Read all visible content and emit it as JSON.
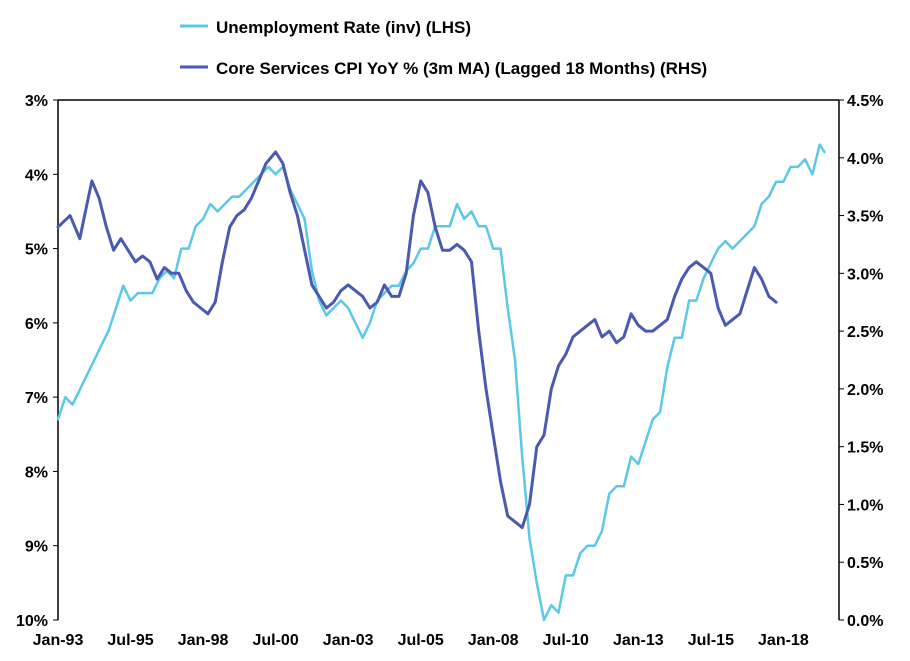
{
  "chart_data": {
    "type": "line",
    "title": "",
    "x_ticks": [
      "Jan-93",
      "Jul-95",
      "Jan-98",
      "Jul-00",
      "Jan-03",
      "Jul-05",
      "Jan-08",
      "Jul-10",
      "Jan-13",
      "Jul-15",
      "Jan-18"
    ],
    "y_left": {
      "inverted": true,
      "ylim": [
        3,
        10
      ],
      "ticks": [
        3,
        4,
        5,
        6,
        7,
        8,
        9,
        10
      ],
      "tick_labels": [
        "3%",
        "4%",
        "5%",
        "6%",
        "7%",
        "8%",
        "9%",
        "10%"
      ]
    },
    "y_right": {
      "ylim": [
        0,
        4.5
      ],
      "ticks": [
        0,
        0.5,
        1,
        1.5,
        2,
        2.5,
        3,
        3.5,
        4,
        4.5
      ],
      "tick_labels": [
        "0.0%",
        "0.5%",
        "1.0%",
        "1.5%",
        "2.0%",
        "2.5%",
        "3.0%",
        "3.5%",
        "4.0%",
        "4.5%"
      ]
    },
    "legend_position": "top-center",
    "series": [
      {
        "name": "Unemployment Rate  (inv) (LHS)",
        "axis": "left",
        "color": "#5BC8E8",
        "points": [
          [
            "1993-01",
            7.3
          ],
          [
            "1993-04",
            7.0
          ],
          [
            "1993-07",
            7.1
          ],
          [
            "1993-10",
            6.9
          ],
          [
            "1994-01",
            6.7
          ],
          [
            "1994-04",
            6.5
          ],
          [
            "1994-07",
            6.3
          ],
          [
            "1994-10",
            6.1
          ],
          [
            "1995-01",
            5.8
          ],
          [
            "1995-04",
            5.5
          ],
          [
            "1995-07",
            5.7
          ],
          [
            "1995-10",
            5.6
          ],
          [
            "1996-01",
            5.6
          ],
          [
            "1996-04",
            5.6
          ],
          [
            "1996-07",
            5.4
          ],
          [
            "1996-10",
            5.3
          ],
          [
            "1997-01",
            5.4
          ],
          [
            "1997-04",
            5.0
          ],
          [
            "1997-07",
            5.0
          ],
          [
            "1997-10",
            4.7
          ],
          [
            "1998-01",
            4.6
          ],
          [
            "1998-04",
            4.4
          ],
          [
            "1998-07",
            4.5
          ],
          [
            "1998-10",
            4.4
          ],
          [
            "1999-01",
            4.3
          ],
          [
            "1999-04",
            4.3
          ],
          [
            "1999-07",
            4.2
          ],
          [
            "1999-10",
            4.1
          ],
          [
            "2000-01",
            4.0
          ],
          [
            "2000-04",
            3.9
          ],
          [
            "2000-07",
            4.0
          ],
          [
            "2000-10",
            3.9
          ],
          [
            "2001-01",
            4.2
          ],
          [
            "2001-04",
            4.4
          ],
          [
            "2001-07",
            4.6
          ],
          [
            "2001-10",
            5.3
          ],
          [
            "2002-01",
            5.7
          ],
          [
            "2002-04",
            5.9
          ],
          [
            "2002-07",
            5.8
          ],
          [
            "2002-10",
            5.7
          ],
          [
            "2003-01",
            5.8
          ],
          [
            "2003-04",
            6.0
          ],
          [
            "2003-07",
            6.2
          ],
          [
            "2003-10",
            6.0
          ],
          [
            "2004-01",
            5.7
          ],
          [
            "2004-04",
            5.6
          ],
          [
            "2004-07",
            5.5
          ],
          [
            "2004-10",
            5.5
          ],
          [
            "2005-01",
            5.3
          ],
          [
            "2005-04",
            5.2
          ],
          [
            "2005-07",
            5.0
          ],
          [
            "2005-10",
            5.0
          ],
          [
            "2006-01",
            4.7
          ],
          [
            "2006-04",
            4.7
          ],
          [
            "2006-07",
            4.7
          ],
          [
            "2006-10",
            4.4
          ],
          [
            "2007-01",
            4.6
          ],
          [
            "2007-04",
            4.5
          ],
          [
            "2007-07",
            4.7
          ],
          [
            "2007-10",
            4.7
          ],
          [
            "2008-01",
            5.0
          ],
          [
            "2008-04",
            5.0
          ],
          [
            "2008-07",
            5.8
          ],
          [
            "2008-10",
            6.5
          ],
          [
            "2009-01",
            7.8
          ],
          [
            "2009-04",
            8.9
          ],
          [
            "2009-07",
            9.5
          ],
          [
            "2009-10",
            10.0
          ],
          [
            "2010-01",
            9.8
          ],
          [
            "2010-04",
            9.9
          ],
          [
            "2010-07",
            9.4
          ],
          [
            "2010-10",
            9.4
          ],
          [
            "2011-01",
            9.1
          ],
          [
            "2011-04",
            9.0
          ],
          [
            "2011-07",
            9.0
          ],
          [
            "2011-10",
            8.8
          ],
          [
            "2012-01",
            8.3
          ],
          [
            "2012-04",
            8.2
          ],
          [
            "2012-07",
            8.2
          ],
          [
            "2012-10",
            7.8
          ],
          [
            "2013-01",
            7.9
          ],
          [
            "2013-04",
            7.6
          ],
          [
            "2013-07",
            7.3
          ],
          [
            "2013-10",
            7.2
          ],
          [
            "2014-01",
            6.6
          ],
          [
            "2014-04",
            6.2
          ],
          [
            "2014-07",
            6.2
          ],
          [
            "2014-10",
            5.7
          ],
          [
            "2015-01",
            5.7
          ],
          [
            "2015-04",
            5.4
          ],
          [
            "2015-07",
            5.2
          ],
          [
            "2015-10",
            5.0
          ],
          [
            "2016-01",
            4.9
          ],
          [
            "2016-04",
            5.0
          ],
          [
            "2016-07",
            4.9
          ],
          [
            "2016-10",
            4.8
          ],
          [
            "2017-01",
            4.7
          ],
          [
            "2017-04",
            4.4
          ],
          [
            "2017-07",
            4.3
          ],
          [
            "2017-10",
            4.1
          ],
          [
            "2018-01",
            4.1
          ],
          [
            "2018-04",
            3.9
          ],
          [
            "2018-07",
            3.9
          ],
          [
            "2018-10",
            3.8
          ],
          [
            "2019-01",
            4.0
          ],
          [
            "2019-04",
            3.6
          ],
          [
            "2019-06",
            3.7
          ]
        ]
      },
      {
        "name": "Core Services CPI YoY % (3m MA) (Lagged 18 Months) (RHS)",
        "axis": "right",
        "color": "#4A5AB0",
        "points": [
          [
            "1993-01",
            3.4
          ],
          [
            "1993-06",
            3.5
          ],
          [
            "1993-10",
            3.3
          ],
          [
            "1994-01",
            3.6
          ],
          [
            "1994-03",
            3.8
          ],
          [
            "1994-06",
            3.65
          ],
          [
            "1994-09",
            3.4
          ],
          [
            "1994-12",
            3.2
          ],
          [
            "1995-03",
            3.3
          ],
          [
            "1995-06",
            3.2
          ],
          [
            "1995-09",
            3.1
          ],
          [
            "1995-12",
            3.15
          ],
          [
            "1996-03",
            3.1
          ],
          [
            "1996-06",
            2.95
          ],
          [
            "1996-09",
            3.05
          ],
          [
            "1996-12",
            3.0
          ],
          [
            "1997-03",
            3.0
          ],
          [
            "1997-06",
            2.85
          ],
          [
            "1997-09",
            2.75
          ],
          [
            "1997-12",
            2.7
          ],
          [
            "1998-03",
            2.65
          ],
          [
            "1998-06",
            2.75
          ],
          [
            "1998-09",
            3.1
          ],
          [
            "1998-12",
            3.4
          ],
          [
            "1999-03",
            3.5
          ],
          [
            "1999-06",
            3.55
          ],
          [
            "1999-09",
            3.65
          ],
          [
            "1999-12",
            3.8
          ],
          [
            "2000-03",
            3.95
          ],
          [
            "2000-07",
            4.05
          ],
          [
            "2000-10",
            3.95
          ],
          [
            "2001-01",
            3.7
          ],
          [
            "2001-04",
            3.5
          ],
          [
            "2001-07",
            3.2
          ],
          [
            "2001-10",
            2.9
          ],
          [
            "2002-01",
            2.8
          ],
          [
            "2002-04",
            2.7
          ],
          [
            "2002-07",
            2.75
          ],
          [
            "2002-10",
            2.85
          ],
          [
            "2003-01",
            2.9
          ],
          [
            "2003-04",
            2.85
          ],
          [
            "2003-07",
            2.8
          ],
          [
            "2003-10",
            2.7
          ],
          [
            "2004-01",
            2.75
          ],
          [
            "2004-04",
            2.9
          ],
          [
            "2004-07",
            2.8
          ],
          [
            "2004-10",
            2.8
          ],
          [
            "2005-01",
            3.0
          ],
          [
            "2005-04",
            3.5
          ],
          [
            "2005-07",
            3.8
          ],
          [
            "2005-10",
            3.7
          ],
          [
            "2006-01",
            3.4
          ],
          [
            "2006-04",
            3.2
          ],
          [
            "2006-07",
            3.2
          ],
          [
            "2006-10",
            3.25
          ],
          [
            "2007-01",
            3.2
          ],
          [
            "2007-04",
            3.1
          ],
          [
            "2007-07",
            2.5
          ],
          [
            "2007-10",
            2.0
          ],
          [
            "2008-01",
            1.6
          ],
          [
            "2008-04",
            1.2
          ],
          [
            "2008-07",
            0.9
          ],
          [
            "2008-10",
            0.85
          ],
          [
            "2009-01",
            0.8
          ],
          [
            "2009-04",
            1.0
          ],
          [
            "2009-07",
            1.5
          ],
          [
            "2009-10",
            1.6
          ],
          [
            "2010-01",
            2.0
          ],
          [
            "2010-04",
            2.2
          ],
          [
            "2010-07",
            2.3
          ],
          [
            "2010-10",
            2.45
          ],
          [
            "2011-01",
            2.5
          ],
          [
            "2011-04",
            2.55
          ],
          [
            "2011-07",
            2.6
          ],
          [
            "2011-10",
            2.45
          ],
          [
            "2012-01",
            2.5
          ],
          [
            "2012-04",
            2.4
          ],
          [
            "2012-07",
            2.45
          ],
          [
            "2012-10",
            2.65
          ],
          [
            "2013-01",
            2.55
          ],
          [
            "2013-04",
            2.5
          ],
          [
            "2013-07",
            2.5
          ],
          [
            "2013-10",
            2.55
          ],
          [
            "2014-01",
            2.6
          ],
          [
            "2014-04",
            2.8
          ],
          [
            "2014-07",
            2.95
          ],
          [
            "2014-10",
            3.05
          ],
          [
            "2015-01",
            3.1
          ],
          [
            "2015-04",
            3.05
          ],
          [
            "2015-07",
            3.0
          ],
          [
            "2015-10",
            2.7
          ],
          [
            "2016-01",
            2.55
          ],
          [
            "2016-04",
            2.6
          ],
          [
            "2016-07",
            2.65
          ],
          [
            "2016-10",
            2.85
          ],
          [
            "2017-01",
            3.05
          ],
          [
            "2017-04",
            2.95
          ],
          [
            "2017-07",
            2.8
          ],
          [
            "2017-10",
            2.75
          ]
        ]
      }
    ]
  }
}
